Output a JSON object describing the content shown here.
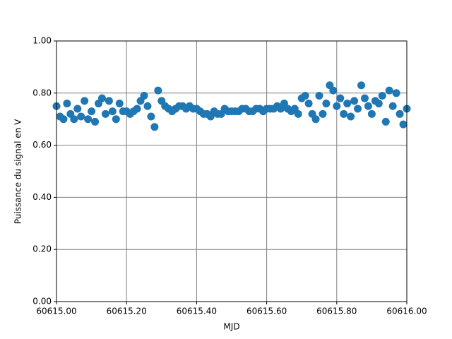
{
  "chart_data": {
    "type": "scatter",
    "xlabel": "MJD",
    "ylabel": "Puissance du signal en V",
    "xlim": [
      60615,
      60616
    ],
    "ylim": [
      0,
      1
    ],
    "xticks": [
      {
        "value": 60615,
        "label": "60615.00"
      },
      {
        "value": 60615.2,
        "label": "60615.20"
      },
      {
        "value": 60615.4,
        "label": "60615.40"
      },
      {
        "value": 60615.6,
        "label": "60615.60"
      },
      {
        "value": 60615.8,
        "label": "60615.80"
      },
      {
        "value": 60616,
        "label": "60616.00"
      }
    ],
    "yticks": [
      {
        "value": 0,
        "label": "0.00"
      },
      {
        "value": 0.2,
        "label": "0.20"
      },
      {
        "value": 0.4,
        "label": "0.40"
      },
      {
        "value": 0.6,
        "label": "0.60"
      },
      {
        "value": 0.8,
        "label": "0.80"
      },
      {
        "value": 1,
        "label": "1.00"
      }
    ],
    "grid": true,
    "color": "#1f77b4",
    "x": [
      60615,
      60615.01,
      60615.02,
      60615.03,
      60615.04,
      60615.05,
      60615.06,
      60615.07,
      60615.08,
      60615.09,
      60615.1,
      60615.11,
      60615.12,
      60615.13,
      60615.14,
      60615.15,
      60615.16,
      60615.17,
      60615.18,
      60615.19,
      60615.2,
      60615.21,
      60615.22,
      60615.23,
      60615.24,
      60615.25,
      60615.26,
      60615.27,
      60615.28,
      60615.29,
      60615.3,
      60615.31,
      60615.32,
      60615.33,
      60615.34,
      60615.35,
      60615.36,
      60615.37,
      60615.38,
      60615.39,
      60615.4,
      60615.41,
      60615.42,
      60615.43,
      60615.44,
      60615.45,
      60615.46,
      60615.47,
      60615.48,
      60615.49,
      60615.5,
      60615.51,
      60615.52,
      60615.53,
      60615.54,
      60615.55,
      60615.56,
      60615.57,
      60615.58,
      60615.59,
      60615.6,
      60615.61,
      60615.62,
      60615.63,
      60615.64,
      60615.65,
      60615.66,
      60615.67,
      60615.68,
      60615.69,
      60615.7,
      60615.71,
      60615.72,
      60615.73,
      60615.74,
      60615.75,
      60615.76,
      60615.77,
      60615.78,
      60615.79,
      60615.8,
      60615.81,
      60615.82,
      60615.83,
      60615.84,
      60615.85,
      60615.86,
      60615.87,
      60615.88,
      60615.89,
      60615.9,
      60615.91,
      60615.92,
      60615.93,
      60615.94,
      60615.95,
      60615.96,
      60615.97,
      60615.98,
      60615.99,
      60616
    ],
    "y": [
      0.75,
      0.71,
      0.7,
      0.76,
      0.72,
      0.7,
      0.74,
      0.71,
      0.77,
      0.7,
      0.73,
      0.69,
      0.76,
      0.78,
      0.72,
      0.77,
      0.73,
      0.7,
      0.76,
      0.73,
      0.73,
      0.72,
      0.73,
      0.74,
      0.77,
      0.79,
      0.75,
      0.71,
      0.67,
      0.81,
      0.77,
      0.75,
      0.74,
      0.73,
      0.74,
      0.75,
      0.75,
      0.74,
      0.75,
      0.74,
      0.74,
      0.73,
      0.72,
      0.72,
      0.71,
      0.73,
      0.72,
      0.72,
      0.74,
      0.73,
      0.73,
      0.73,
      0.73,
      0.74,
      0.74,
      0.73,
      0.73,
      0.74,
      0.74,
      0.73,
      0.74,
      0.74,
      0.74,
      0.75,
      0.74,
      0.76,
      0.74,
      0.73,
      0.74,
      0.72,
      0.78,
      0.79,
      0.76,
      0.72,
      0.7,
      0.79,
      0.72,
      0.76,
      0.83,
      0.81,
      0.75,
      0.78,
      0.72,
      0.76,
      0.71,
      0.77,
      0.74,
      0.83,
      0.78,
      0.75,
      0.72,
      0.77,
      0.76,
      0.79,
      0.69,
      0.81,
      0.75,
      0.8,
      0.72,
      0.68,
      0.74
    ]
  }
}
